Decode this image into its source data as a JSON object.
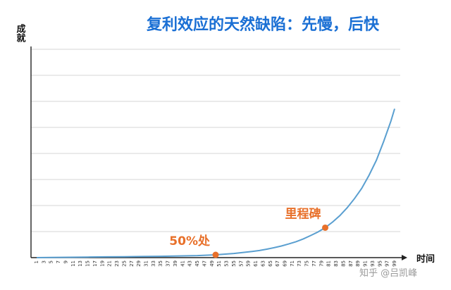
{
  "chart_data": {
    "type": "line",
    "title": "复利效应的天然缺陷：先慢，后快",
    "ylabel": "成就",
    "xlabel": "时间",
    "grid": true,
    "xlim": [
      1,
      99
    ],
    "ylim": [
      0,
      100
    ],
    "x_ticks": [
      1,
      3,
      5,
      7,
      9,
      11,
      13,
      15,
      17,
      19,
      21,
      23,
      25,
      27,
      29,
      31,
      33,
      35,
      37,
      39,
      41,
      43,
      45,
      47,
      49,
      51,
      53,
      55,
      57,
      59,
      61,
      63,
      65,
      67,
      69,
      71,
      73,
      75,
      77,
      79,
      81,
      83,
      85,
      87,
      89,
      91,
      93,
      95,
      97,
      99
    ],
    "series": [
      {
        "color": "#5a9fd0",
        "x": [
          1,
          5,
          10,
          15,
          20,
          25,
          30,
          35,
          40,
          45,
          50,
          55,
          60,
          62,
          64,
          66,
          68,
          70,
          72,
          74,
          76,
          78,
          80,
          82,
          84,
          86,
          88,
          90,
          92,
          94,
          96,
          98,
          99
        ],
        "y": [
          0.0,
          0.1,
          0.2,
          0.3,
          0.4,
          0.5,
          0.6,
          0.7,
          0.9,
          1.1,
          1.5,
          2.2,
          3.3,
          3.8,
          4.5,
          5.3,
          6.2,
          7.3,
          8.5,
          10.0,
          11.8,
          13.7,
          16.0,
          19.0,
          22.4,
          26.6,
          31.5,
          37.0,
          44.0,
          52.0,
          62.0,
          73.0,
          79.5
        ]
      }
    ],
    "annotations": [
      {
        "label": "50%处",
        "x": 50,
        "y": 1.5
      },
      {
        "label": "里程碑",
        "x": 80,
        "y": 16.0
      }
    ],
    "colors": {
      "title": "#1a6fd4",
      "annotation": "#e8702a",
      "curve": "#5a9fd0"
    }
  },
  "watermark": "知乎 @吕凯峰"
}
